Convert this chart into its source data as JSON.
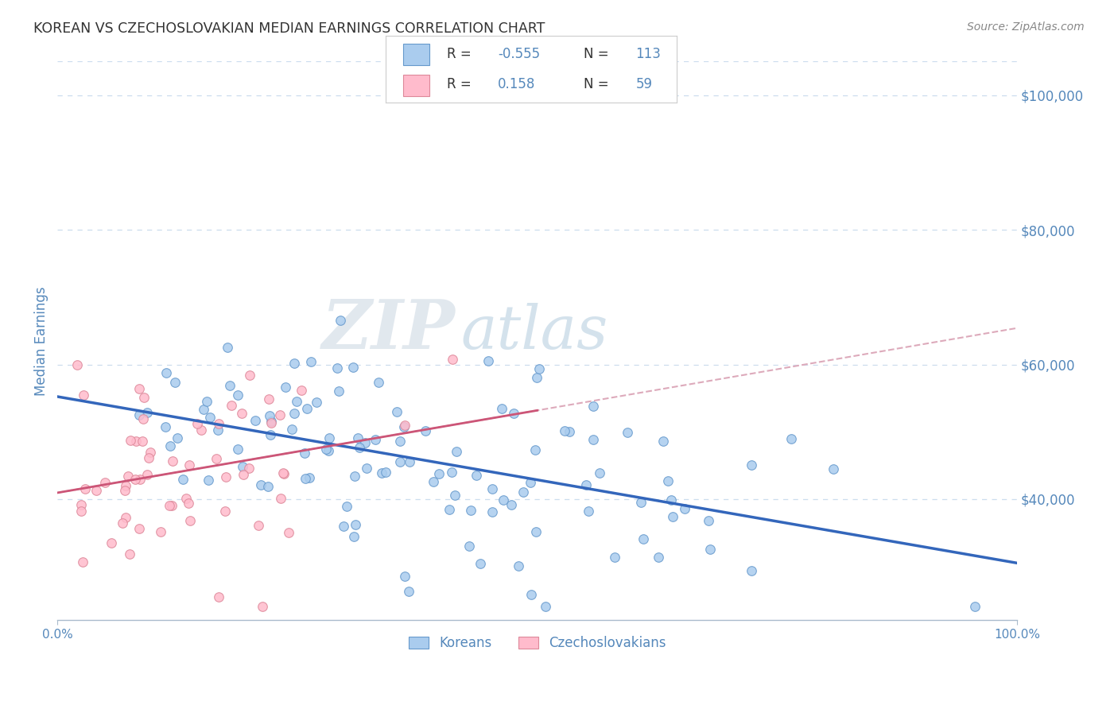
{
  "title": "KOREAN VS CZECHOSLOVAKIAN MEDIAN EARNINGS CORRELATION CHART",
  "source": "Source: ZipAtlas.com",
  "ylabel": "Median Earnings",
  "xlim": [
    0.0,
    1.0
  ],
  "ylim": [
    22000,
    105000
  ],
  "yticks": [
    40000,
    60000,
    80000,
    100000
  ],
  "ytick_labels": [
    "$40,000",
    "$60,000",
    "$80,000",
    "$100,000"
  ],
  "korean_color": "#aaccee",
  "korean_edge_color": "#6699cc",
  "czech_color": "#ffbbcc",
  "czech_edge_color": "#dd8899",
  "korean_line_color": "#3366bb",
  "czech_line_color": "#cc5577",
  "czech_dash_color": "#ddaabb",
  "korean_R": -0.555,
  "korean_N": 113,
  "czech_R": 0.158,
  "czech_N": 59,
  "watermark_zip_color": "#d0dce8",
  "watermark_atlas_color": "#b8cfe0",
  "background_color": "#ffffff",
  "grid_color": "#ccddee",
  "axis_label_color": "#5588bb",
  "title_color": "#333333",
  "source_color": "#888888"
}
